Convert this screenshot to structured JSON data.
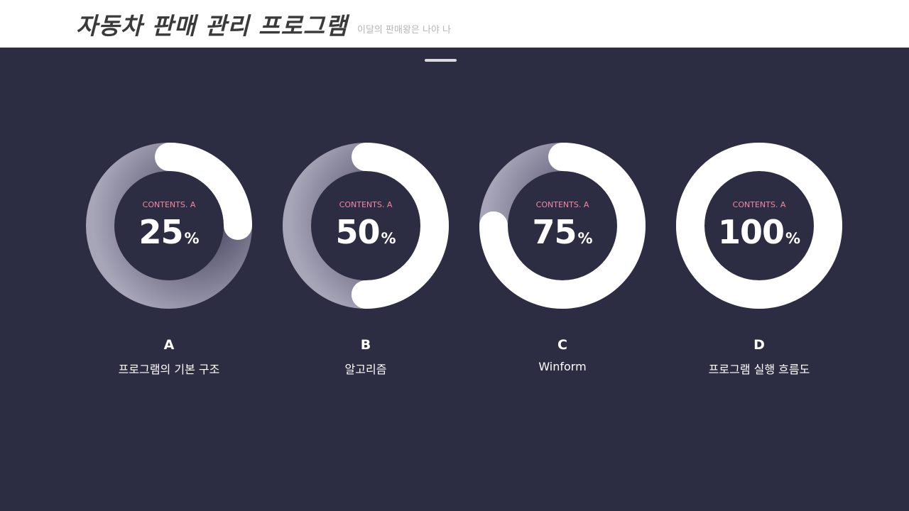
{
  "header": {
    "title": "자동차 판매 관리 프로그램",
    "subtitle": "이달의 판매왕은 나야 나"
  },
  "colors": {
    "background": "#2c2c43",
    "ring_fill": "#ffffff",
    "caption": "#f08aa0"
  },
  "gauges": [
    {
      "caption": "CONTENTS. A",
      "value": "25",
      "unit": "%",
      "percent": 25,
      "letter": "A",
      "label": "프로그램의 기본 구조"
    },
    {
      "caption": "CONTENTS. A",
      "value": "50",
      "unit": "%",
      "percent": 50,
      "letter": "B",
      "label": "알고리즘"
    },
    {
      "caption": "CONTENTS. A",
      "value": "75",
      "unit": "%",
      "percent": 75,
      "letter": "C",
      "label": "Winform"
    },
    {
      "caption": "CONTENTS. A",
      "value": "100",
      "unit": "%",
      "percent": 100,
      "letter": "D",
      "label": "프로그램 실행 흐름도"
    }
  ]
}
